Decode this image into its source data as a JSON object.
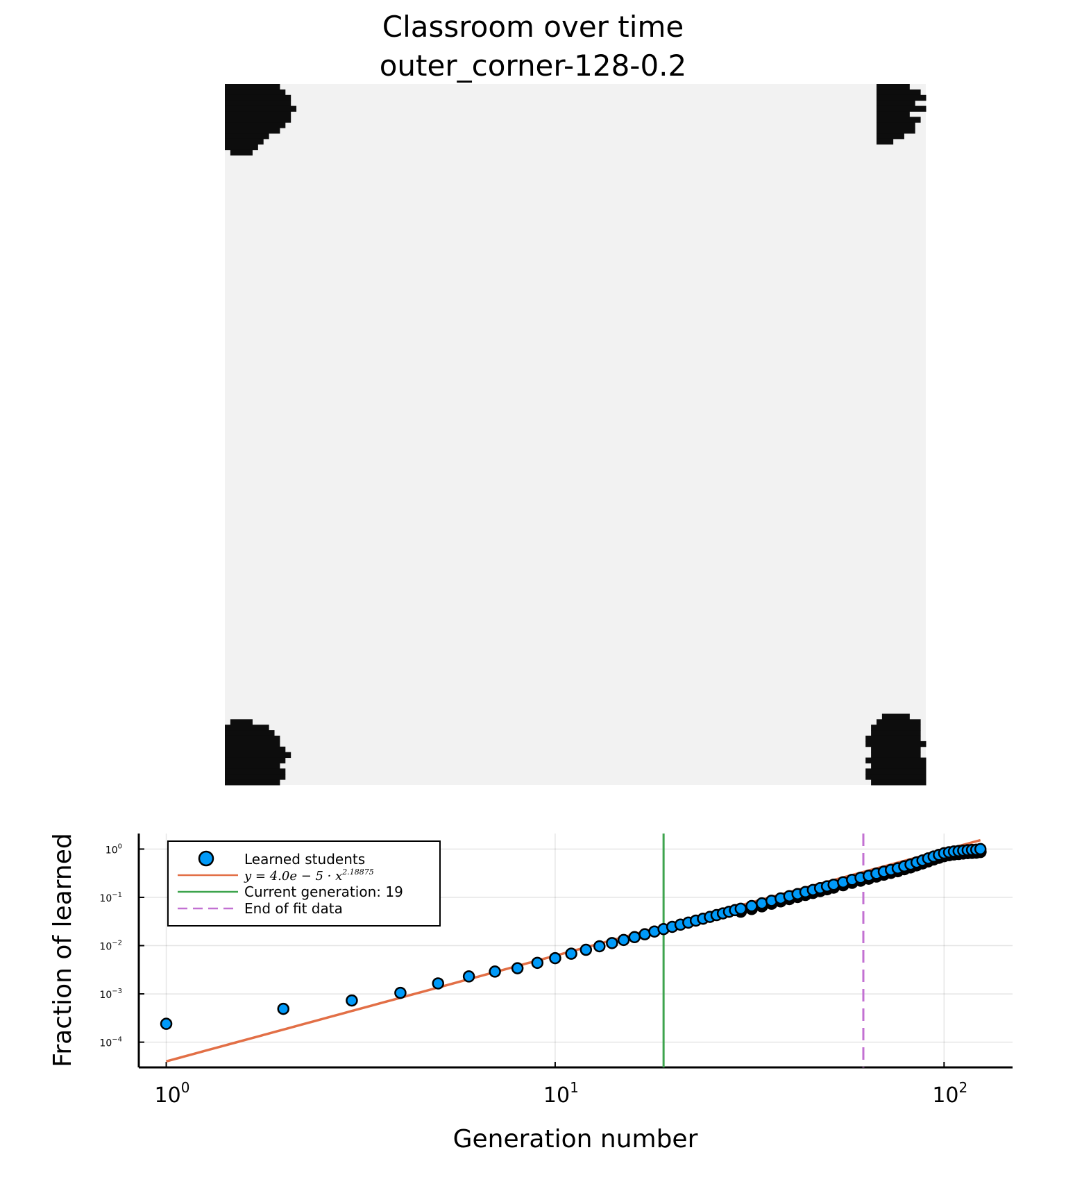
{
  "title": {
    "line1": "Classroom over time",
    "line2": "outer_corner-128-0.2"
  },
  "colors": {
    "grid_background": "#f2f2f2",
    "learned_cell": "#0d0d0d",
    "scatter_fill": "#009af9",
    "fit_line": "#e26f46",
    "current_generation": "#3da44d",
    "end_of_fit": "#c271d2"
  },
  "classroom": {
    "grid_size": 128,
    "learned_regions": [
      {
        "corner": "top-left"
      },
      {
        "corner": "top-right"
      },
      {
        "corner": "bottom-left"
      },
      {
        "corner": "bottom-right"
      }
    ]
  },
  "chart_data": {
    "type": "scatter",
    "xscale": "log10",
    "yscale": "log10",
    "xlabel": "Generation number",
    "ylabel": "Fraction of learned",
    "xlim": [
      0.85,
      150
    ],
    "ylim": [
      3e-05,
      2.1
    ],
    "xticks": [
      {
        "value": 1,
        "base": "10",
        "exp": "0"
      },
      {
        "value": 10,
        "base": "10",
        "exp": "1"
      },
      {
        "value": 100,
        "base": "10",
        "exp": "2"
      }
    ],
    "yticks": [
      {
        "value": 1,
        "base": "10",
        "exp": "0"
      },
      {
        "value": 0.1,
        "base": "10",
        "exp": "−1"
      },
      {
        "value": 0.01,
        "base": "10",
        "exp": "−2"
      },
      {
        "value": 0.001,
        "base": "10",
        "exp": "−3"
      },
      {
        "value": 0.0001,
        "base": "10",
        "exp": "−4"
      }
    ],
    "grid": true,
    "legend_position": "top-left",
    "series": [
      {
        "name": "Learned students",
        "kind": "scatter",
        "x": [
          1,
          2,
          3,
          4,
          5,
          6,
          7,
          8,
          9,
          10,
          11,
          12,
          13,
          14,
          15,
          16,
          17,
          18,
          19,
          20,
          21,
          22,
          23,
          24,
          25,
          26,
          27,
          28,
          29,
          30,
          32,
          34,
          36,
          38,
          40,
          42,
          44,
          46,
          48,
          50,
          52,
          55,
          58,
          61,
          64,
          67,
          70,
          73,
          76,
          79,
          82,
          85,
          88,
          91,
          94,
          97,
          100,
          103,
          106,
          109,
          112,
          115,
          118,
          121,
          124
        ],
        "y": [
          0.00024,
          0.00049,
          0.00073,
          0.00105,
          0.00165,
          0.0023,
          0.0029,
          0.0034,
          0.0044,
          0.0055,
          0.0068,
          0.0082,
          0.0097,
          0.0113,
          0.0131,
          0.015,
          0.0172,
          0.0196,
          0.022,
          0.0245,
          0.0272,
          0.03,
          0.033,
          0.0361,
          0.0394,
          0.0429,
          0.0465,
          0.0503,
          0.0543,
          0.058,
          0.066,
          0.075,
          0.085,
          0.095,
          0.106,
          0.117,
          0.129,
          0.142,
          0.155,
          0.169,
          0.183,
          0.205,
          0.23,
          0.255,
          0.28,
          0.31,
          0.34,
          0.37,
          0.4,
          0.44,
          0.48,
          0.53,
          0.58,
          0.64,
          0.7,
          0.76,
          0.82,
          0.86,
          0.89,
          0.91,
          0.93,
          0.95,
          0.96,
          0.97,
          1.0
        ]
      },
      {
        "name": "y = 4.0e − 5 · x^2.18875",
        "legend_math": {
          "lhs": "y = 4.0e − 5 · x",
          "exponent": "2.18875"
        },
        "kind": "fit",
        "coefficient": 4e-05,
        "exponent": 2.18875,
        "x_range": [
          1,
          124
        ]
      },
      {
        "name": "Current generation: 19",
        "kind": "vline",
        "x": 19
      },
      {
        "name": "End of fit data",
        "kind": "vline-dashed",
        "x": 62
      }
    ]
  }
}
